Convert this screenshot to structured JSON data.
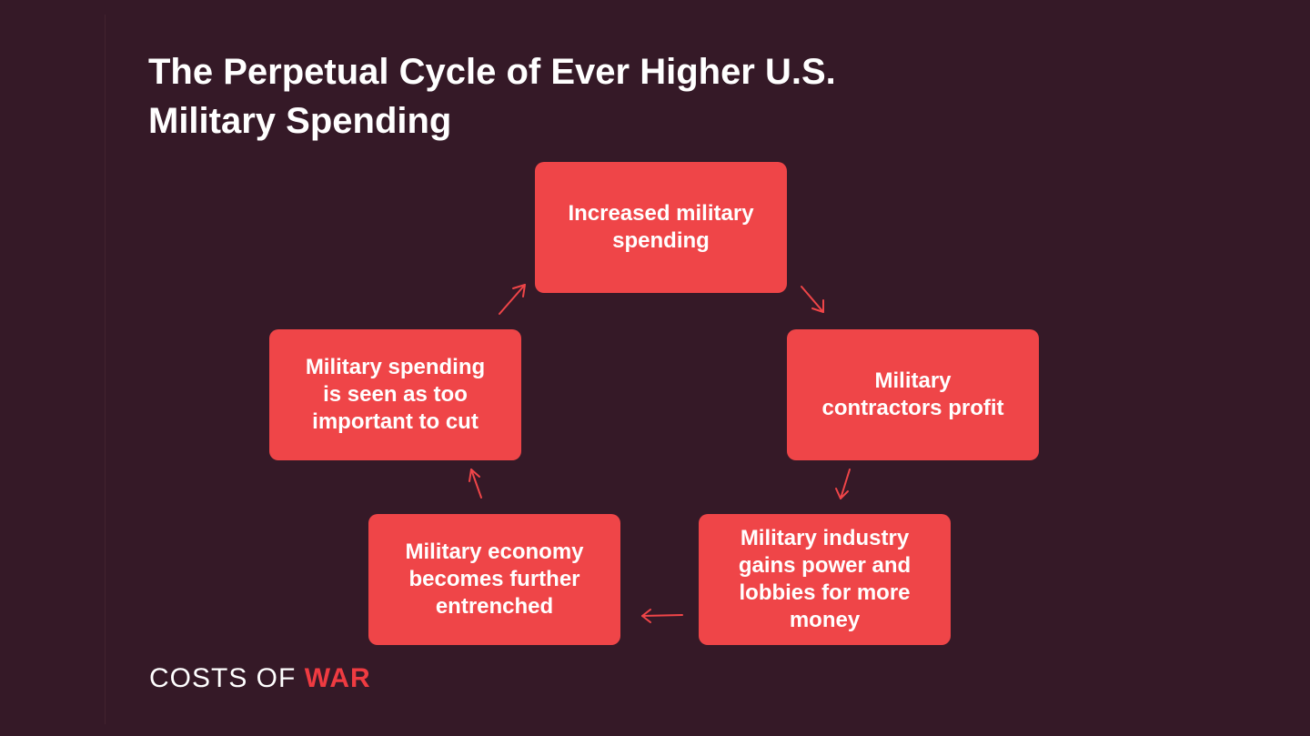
{
  "title": "The Perpetual Cycle of Ever Higher U.S. Military Spending",
  "cycle": {
    "nodes": [
      {
        "label": "Increased military spending"
      },
      {
        "label": "Military contractors profit"
      },
      {
        "label": "Military industry gains power and lobbies for more money"
      },
      {
        "label": "Military economy becomes further entrenched"
      },
      {
        "label": "Military spending is seen as too important to cut"
      }
    ]
  },
  "brand": {
    "costs_of": "COSTS OF",
    "war": "WAR"
  },
  "colors": {
    "background": "#351927",
    "node_fill": "#ef4548",
    "arrow": "#ef4548",
    "brand_accent": "#ef3b41",
    "text": "#ffffff"
  }
}
